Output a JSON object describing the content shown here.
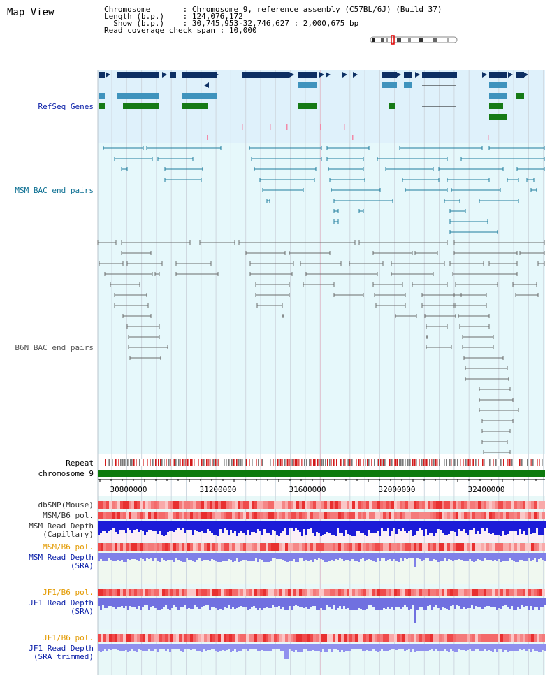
{
  "view": {
    "title": "Map View",
    "info": {
      "line1_key": "Chromosome",
      "line1_val": "Chromosome 9, reference assembly (C57BL/6J) (Build 37)",
      "line2_key": "Length (b.p.)",
      "line2_val": "124,076,172",
      "line3_key": "Show (b.p.)",
      "line3_val": "30,745,953-32,746,627 : 2,000,675 bp",
      "line4_key": "Read coverage check span",
      "line4_val": "10,000"
    }
  },
  "tracks": {
    "refseq": "RefSeq Genes",
    "msm_bac": "MSM BAC end pairs",
    "b6n_bac": "B6N BAC end pairs",
    "repeat": "Repeat",
    "chromosome": "chromosome 9",
    "dbsnp": "dbSNP(Mouse)",
    "msm_b6_pol_1": "MSM/B6 pol.",
    "msm_read_depth_cap_1": "MSM Read Depth",
    "msm_read_depth_cap_2": "(Capillary)",
    "msm_b6_pol_2": "MSM/B6 pol.",
    "msm_read_depth_sra_1": "MSM Read Depth",
    "msm_read_depth_sra_2": "(SRA)",
    "jf1_b6_pol_1": "JF1/B6 pol.",
    "jf1_read_depth_sra_1": "JF1 Read Depth",
    "jf1_read_depth_sra_2": "(SRA)",
    "jf1_b6_pol_2": "JF1/B6 pol.",
    "jf1_read_depth_trim_1": "JF1 Read Depth",
    "jf1_read_depth_trim_2": "(SRA trimmed)"
  },
  "axis": {
    "ticks": [
      "30800000",
      "31200000",
      "31600000",
      "32000000",
      "32400000"
    ]
  },
  "colors": {
    "refseq_bg": "#dff1fb",
    "bac_bg": "#e6f8fb",
    "gene_navy": "#0d2f63",
    "gene_blue": "#3f93bd",
    "gene_green": "#167a16",
    "bac_teal": "#1f7d9c",
    "bac_gray": "#6b6b6b",
    "chromosome_green": "#0d7a0d",
    "label_blue": "#0a1fa8",
    "label_orange": "#e39a00",
    "label_teal": "#0c6f92"
  }
}
